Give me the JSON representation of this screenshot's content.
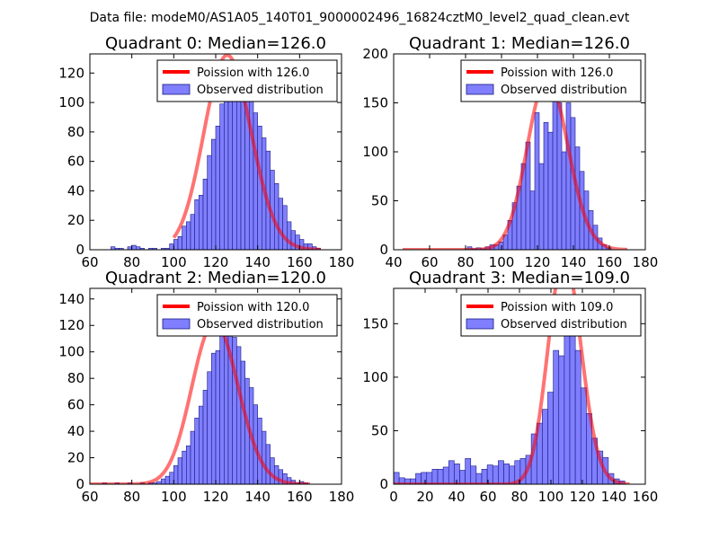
{
  "figure": {
    "title": "Data file: modeM0/AS1A05_140T01_9000002496_16824cztM0_level2_quad_clean.evt"
  },
  "colors": {
    "poisson_line": "#ff0000",
    "bar_fill": "#7f7fff",
    "bar_edge": "#1a1a80",
    "axes": "#000000"
  },
  "chart_data": [
    {
      "type": "bar",
      "title": "Quadrant 0: Median=126.0",
      "xlim": [
        60,
        180
      ],
      "ylim": [
        0,
        133
      ],
      "xticks": [
        60,
        80,
        100,
        120,
        140,
        160,
        180
      ],
      "yticks": [
        0,
        20,
        40,
        60,
        80,
        100,
        120
      ],
      "legend": {
        "placement": "top-right",
        "line_label": "Poission with 126.0",
        "bar_label": "Observed distribution"
      },
      "poisson_mean": 126.0,
      "poisson_x_range": [
        100,
        170
      ],
      "bins": {
        "start": 70,
        "width": 2
      },
      "counts": [
        2,
        1,
        1,
        0,
        2,
        3,
        2,
        1,
        0,
        1,
        1,
        0,
        1,
        1,
        4,
        7,
        9,
        16,
        19,
        24,
        34,
        37,
        48,
        64,
        75,
        84,
        99,
        111,
        102,
        119,
        111,
        126,
        108,
        103,
        93,
        84,
        76,
        67,
        54,
        45,
        35,
        30,
        19,
        13,
        10,
        7,
        4,
        4,
        2,
        1
      ]
    },
    {
      "type": "bar",
      "title": "Quadrant 1: Median=126.0",
      "xlim": [
        40,
        180
      ],
      "ylim": [
        0,
        200
      ],
      "xticks": [
        40,
        60,
        80,
        100,
        120,
        140,
        160,
        180
      ],
      "yticks": [
        0,
        50,
        100,
        150,
        200
      ],
      "legend": {
        "placement": "top-right",
        "line_label": "Poission with 126.0",
        "bar_label": "Observed distribution"
      },
      "poisson_mean": 126.0,
      "poisson_x_range": [
        45,
        170
      ],
      "bins": {
        "start": 81,
        "width": 2.5
      },
      "counts": [
        3,
        1,
        2,
        1,
        3,
        5,
        5,
        8,
        15,
        30,
        48,
        65,
        88,
        110,
        60,
        140,
        88,
        130,
        120,
        190,
        150,
        100,
        150,
        135,
        105,
        80,
        60,
        40,
        25,
        12,
        5,
        2
      ]
    },
    {
      "type": "bar",
      "title": "Quadrant 2: Median=120.0",
      "xlim": [
        60,
        180
      ],
      "ylim": [
        0,
        148
      ],
      "xticks": [
        60,
        80,
        100,
        120,
        140,
        160,
        180
      ],
      "yticks": [
        0,
        20,
        40,
        60,
        80,
        100,
        120,
        140
      ],
      "legend": {
        "placement": "top-right",
        "line_label": "Poission with 120.0",
        "bar_label": "Observed distribution"
      },
      "poisson_mean": 120.0,
      "poisson_x_range": [
        60,
        165
      ],
      "bins": {
        "start": 66,
        "width": 2
      },
      "counts": [
        1,
        0,
        0,
        1,
        0,
        0,
        1,
        0,
        0,
        1,
        0,
        1,
        1,
        2,
        4,
        6,
        9,
        14,
        20,
        25,
        29,
        40,
        50,
        59,
        71,
        85,
        99,
        101,
        114,
        129,
        114,
        111,
        104,
        93,
        80,
        73,
        60,
        50,
        40,
        30,
        20,
        14,
        11,
        8,
        5,
        3,
        1,
        2,
        1,
        0
      ]
    },
    {
      "type": "bar",
      "title": "Quadrant 3: Median=109.0",
      "xlim": [
        0,
        160
      ],
      "ylim": [
        0,
        183
      ],
      "xticks": [
        0,
        20,
        40,
        60,
        80,
        100,
        120,
        140,
        160
      ],
      "yticks": [
        0,
        50,
        100,
        150
      ],
      "legend": {
        "placement": "top-right",
        "line_label": "Poission with 109.0",
        "bar_label": "Observed distribution"
      },
      "poisson_mean": 109.0,
      "poisson_x_range": [
        0,
        150
      ],
      "bins": {
        "start": 0,
        "width": 3.5
      },
      "counts": [
        11,
        6,
        5,
        5,
        10,
        11,
        11,
        14,
        14,
        16,
        22,
        19,
        13,
        24,
        17,
        10,
        14,
        18,
        17,
        22,
        19,
        17,
        22,
        24,
        27,
        47,
        57,
        70,
        86,
        125,
        120,
        150,
        148,
        125,
        90,
        66,
        43,
        31,
        25,
        10,
        5,
        3
      ]
    }
  ]
}
